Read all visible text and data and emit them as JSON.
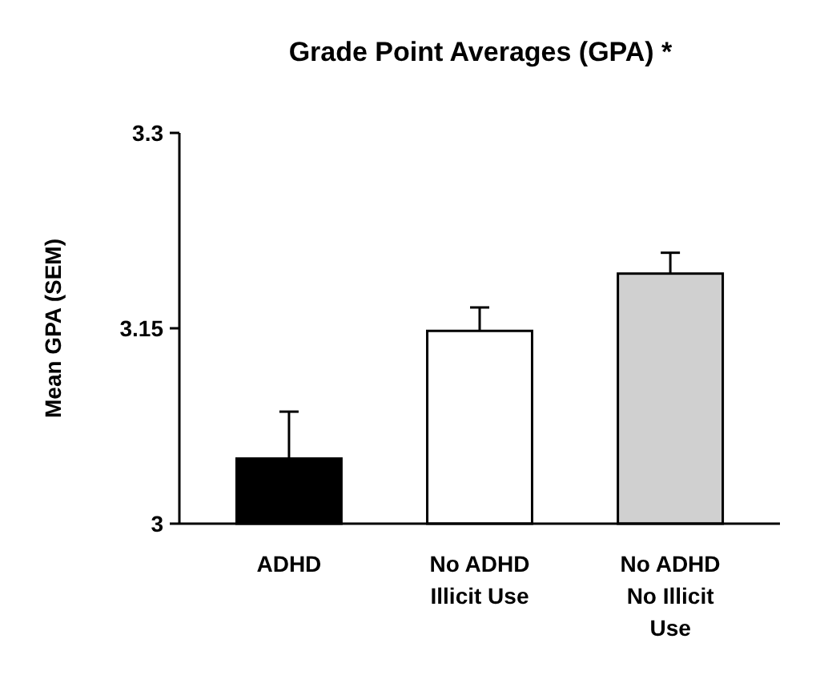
{
  "chart_data": {
    "type": "bar",
    "title": "Grade Point Averages (GPA) *",
    "ylabel": "Mean GPA (SEM)",
    "categories": [
      "ADHD",
      "No ADHD Illicit Use",
      "No ADHD No Illicit Use"
    ],
    "values": [
      3.05,
      3.148,
      3.192
    ],
    "colors": [
      "#000000",
      "#ffffff",
      "#d0d0d0"
    ],
    "errors": [
      [
        3.05,
        3.086
      ],
      [
        3.148,
        3.166
      ],
      [
        3.192,
        3.208
      ]
    ],
    "ylim": [
      3,
      3.3
    ],
    "yticks": [
      3,
      3.15,
      3.3
    ],
    "grid": false
  }
}
